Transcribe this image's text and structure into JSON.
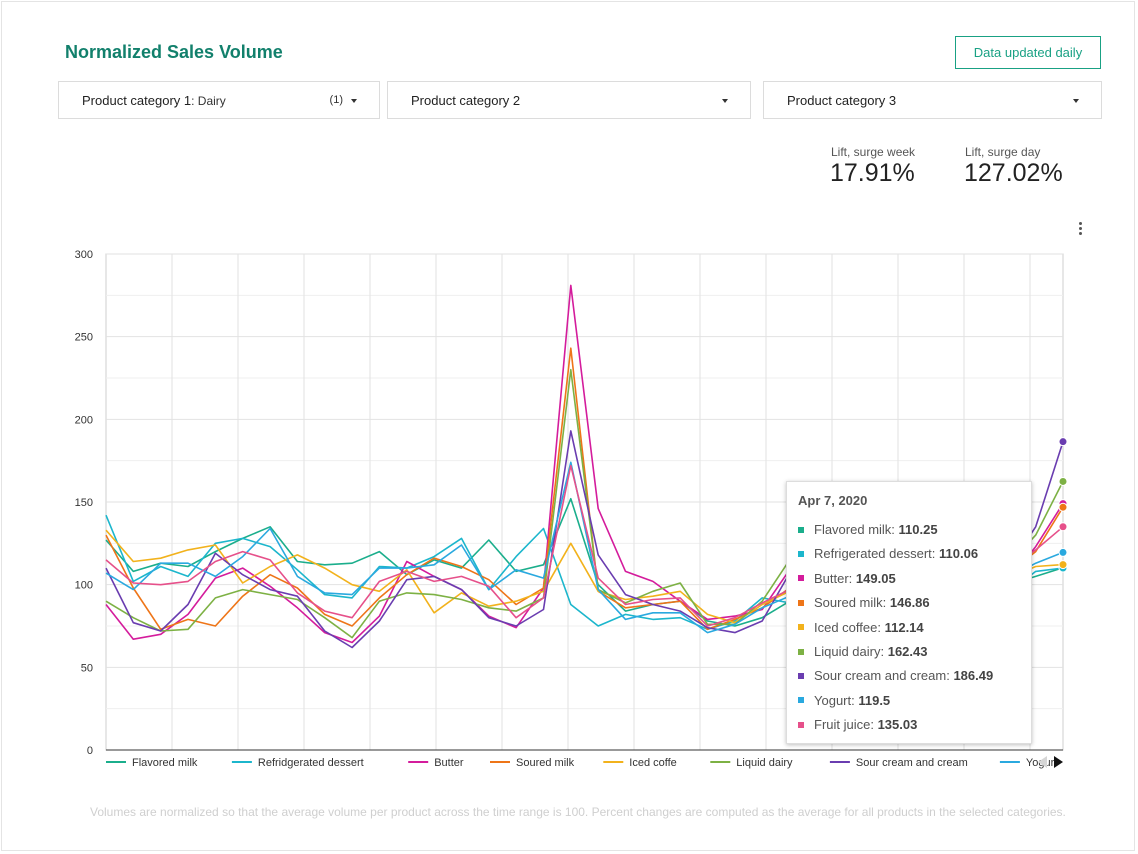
{
  "header": {
    "title": "Normalized Sales Volume",
    "updated_label": "Data updated daily"
  },
  "filters": [
    {
      "label": "Product category 1",
      "selected": ": Dairy",
      "count": "(1)"
    },
    {
      "label": "Product category 2",
      "selected": "",
      "count": ""
    },
    {
      "label": "Product category 3",
      "selected": "",
      "count": ""
    }
  ],
  "metrics": [
    {
      "label": "Lift, surge week",
      "value": "17.91%"
    },
    {
      "label": "Lift, surge day",
      "value": "127.02%"
    }
  ],
  "tooltip": {
    "date": "Apr 7, 2020",
    "rows": [
      {
        "name": "Flavored milk",
        "value": "110.25"
      },
      {
        "name": "Refrigerated dessert",
        "value": "110.06"
      },
      {
        "name": "Butter",
        "value": "149.05"
      },
      {
        "name": "Soured milk",
        "value": "146.86"
      },
      {
        "name": "Iced coffee",
        "value": "112.14"
      },
      {
        "name": "Liquid dairy",
        "value": "162.43"
      },
      {
        "name": "Sour cream and cream",
        "value": "186.49"
      },
      {
        "name": "Yogurt",
        "value": "119.5"
      },
      {
        "name": "Fruit juice",
        "value": "135.03"
      }
    ]
  },
  "footnote": "Volumes are normalized so that the average volume per product across the time range is 100. Percent changes are computed as the average for all products in the selected categories.",
  "chart_data": {
    "type": "line",
    "ylim": [
      0,
      300
    ],
    "yticks": [
      0,
      50,
      100,
      150,
      200,
      250,
      300
    ],
    "grid": true,
    "legend_placement": "bottom",
    "x_count": 36,
    "series": [
      {
        "name": "Flavored milk",
        "color": "#1bae8c",
        "legend": true,
        "values": [
          127,
          108,
          113,
          111,
          120,
          128,
          135,
          114,
          112,
          113,
          120,
          106,
          115,
          110,
          127,
          108,
          112,
          152,
          100,
          84,
          88,
          90,
          78,
          75,
          80,
          90,
          90,
          86,
          94,
          95,
          85,
          83,
          92,
          100,
          105,
          110.25
        ]
      },
      {
        "name": "Refridgerated dessert",
        "color": "#1cb6cc",
        "legend": true,
        "values": [
          142,
          102,
          111,
          105,
          125,
          128,
          123,
          109,
          94,
          92,
          111,
          110,
          117,
          128,
          97,
          117,
          134,
          88,
          75,
          82,
          79,
          80,
          73,
          78,
          92,
          89,
          90,
          100,
          86,
          81,
          74,
          78,
          88,
          95,
          108,
          110.06
        ]
      },
      {
        "name": "Butter",
        "color": "#d41c9c",
        "legend": true,
        "values": [
          88,
          67,
          70,
          82,
          104,
          110,
          99,
          86,
          71,
          65,
          81,
          114,
          105,
          97,
          81,
          74,
          98,
          281,
          146,
          108,
          102,
          90,
          79,
          81,
          85,
          109,
          106,
          96,
          87,
          74,
          80,
          79,
          91,
          102,
          123,
          149.05
        ]
      },
      {
        "name": "Soured milk",
        "color": "#ee7518",
        "legend": true,
        "values": [
          130,
          98,
          73,
          79,
          75,
          93,
          106,
          98,
          82,
          75,
          92,
          106,
          116,
          111,
          103,
          88,
          98,
          243,
          96,
          86,
          88,
          90,
          73,
          79,
          86,
          98,
          92,
          91,
          82,
          84,
          93,
          91,
          96,
          107,
          120,
          146.86
        ]
      },
      {
        "name": "Iced coffe",
        "color": "#f2b21c",
        "legend": true,
        "values": [
          133,
          114,
          116,
          121,
          124,
          101,
          111,
          118,
          110,
          100,
          96,
          109,
          83,
          95,
          87,
          90,
          96,
          125,
          96,
          91,
          93,
          96,
          82,
          77,
          88,
          96,
          88,
          89,
          90,
          80,
          85,
          87,
          97,
          104,
          111,
          112.14
        ]
      },
      {
        "name": "Liquid dairy",
        "color": "#7db144",
        "legend": true,
        "values": [
          90,
          80,
          72,
          73,
          92,
          97,
          94,
          91,
          80,
          68,
          90,
          95,
          94,
          91,
          86,
          84,
          92,
          230,
          97,
          89,
          96,
          101,
          76,
          76,
          90,
          115,
          89,
          91,
          98,
          84,
          86,
          91,
          101,
          112,
          130,
          162.43
        ]
      },
      {
        "name": "Sour cream and cream",
        "color": "#6a3db0",
        "legend": true,
        "values": [
          110,
          77,
          72,
          88,
          119,
          106,
          97,
          93,
          72,
          62,
          78,
          103,
          105,
          97,
          80,
          75,
          85,
          193,
          118,
          94,
          88,
          84,
          74,
          71,
          78,
          107,
          95,
          93,
          84,
          76,
          81,
          83,
          95,
          110,
          135,
          186.49
        ]
      },
      {
        "name": "Yogurt",
        "color": "#2aa9df",
        "legend": true,
        "values": [
          107,
          97,
          113,
          113,
          105,
          117,
          134,
          105,
          95,
          94,
          110,
          110,
          112,
          124,
          97,
          109,
          104,
          174,
          97,
          79,
          83,
          83,
          71,
          76,
          86,
          93,
          86,
          90,
          100,
          87,
          83,
          86,
          98,
          104,
          113,
          119.5
        ]
      },
      {
        "name": "Fruit juice",
        "color": "#e6508a",
        "legend": false,
        "values": [
          115,
          101,
          100,
          102,
          114,
          120,
          115,
          95,
          84,
          80,
          102,
          108,
          102,
          105,
          99,
          80,
          92,
          172,
          104,
          88,
          91,
          92,
          75,
          80,
          89,
          97,
          94,
          92,
          90,
          84,
          86,
          90,
          100,
          110,
          121,
          135.03
        ]
      }
    ]
  }
}
